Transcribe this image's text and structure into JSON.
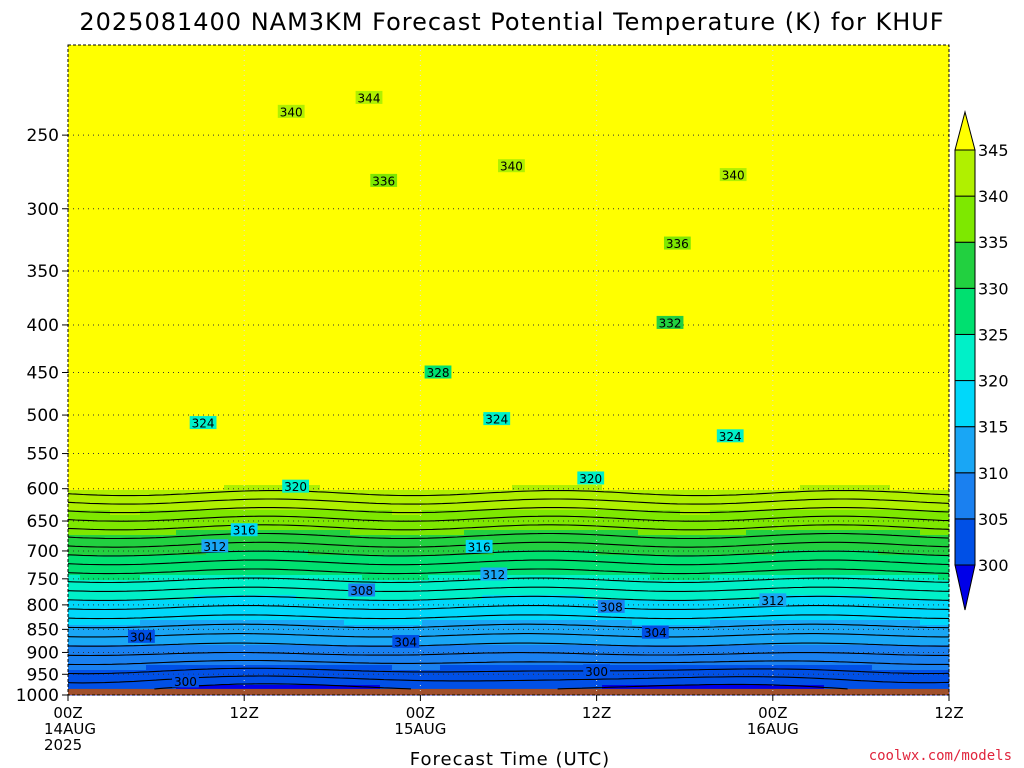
{
  "chart_data": {
    "type": "heatmap",
    "title": "2025081400 NAM3KM Forecast Potential Temperature (K) for KHUF",
    "xlabel": "Forecast Time (UTC)",
    "ylabel": "",
    "y_scale": "log",
    "y_inverted": true,
    "ylim": [
      1000,
      200
    ],
    "y_ticks": [
      250,
      300,
      350,
      400,
      450,
      500,
      550,
      600,
      650,
      700,
      750,
      800,
      850,
      900,
      950,
      1000
    ],
    "x_range_hours": [
      0,
      60
    ],
    "x_ticks": [
      {
        "hour": 0,
        "lines": [
          "00Z",
          "14AUG",
          "2025"
        ]
      },
      {
        "hour": 12,
        "lines": [
          "12Z"
        ]
      },
      {
        "hour": 24,
        "lines": [
          "00Z",
          "15AUG"
        ]
      },
      {
        "hour": 36,
        "lines": [
          "12Z"
        ]
      },
      {
        "hour": 48,
        "lines": [
          "00Z",
          "16AUG"
        ]
      },
      {
        "hour": 60,
        "lines": [
          "12Z"
        ]
      }
    ],
    "grid": true,
    "surface_pressure_hPa": 985,
    "surface_color": "#a0502c",
    "colorbar": {
      "levels": [
        300,
        305,
        310,
        315,
        320,
        325,
        330,
        335,
        340,
        345
      ],
      "labels": [
        "300",
        "305",
        "310",
        "315",
        "320",
        "325",
        "330",
        "335",
        "340",
        "345"
      ],
      "colors": [
        "#0000e8",
        "#0050e6",
        "#1a80f0",
        "#19a6f5",
        "#00d8fa",
        "#00f0c8",
        "#00e070",
        "#22d040",
        "#7ee800",
        "#b0f000",
        "#ffff00"
      ],
      "extend": "both",
      "placement": "right"
    },
    "contour_interval": 2,
    "contour_levels_shown": [
      300,
      302,
      304,
      306,
      308,
      310,
      312,
      314,
      316,
      318,
      320,
      322,
      324,
      326,
      328,
      330,
      332,
      334,
      336,
      338,
      340,
      342,
      344
    ],
    "contour_labels": [
      {
        "value": "344",
        "hour": 20.5,
        "pressure": 228
      },
      {
        "value": "340",
        "hour": 15.2,
        "pressure": 236
      },
      {
        "value": "340",
        "hour": 30.2,
        "pressure": 270
      },
      {
        "value": "340",
        "hour": 45.3,
        "pressure": 276
      },
      {
        "value": "336",
        "hour": 21.5,
        "pressure": 280
      },
      {
        "value": "336",
        "hour": 41.5,
        "pressure": 327
      },
      {
        "value": "332",
        "hour": 41.0,
        "pressure": 398
      },
      {
        "value": "328",
        "hour": 25.2,
        "pressure": 450
      },
      {
        "value": "324",
        "hour": 9.2,
        "pressure": 510
      },
      {
        "value": "324",
        "hour": 29.2,
        "pressure": 505
      },
      {
        "value": "324",
        "hour": 45.1,
        "pressure": 527
      },
      {
        "value": "320",
        "hour": 15.5,
        "pressure": 597
      },
      {
        "value": "320",
        "hour": 35.6,
        "pressure": 585
      },
      {
        "value": "316",
        "hour": 12.0,
        "pressure": 665
      },
      {
        "value": "316",
        "hour": 28.0,
        "pressure": 693
      },
      {
        "value": "312",
        "hour": 10.0,
        "pressure": 692
      },
      {
        "value": "312",
        "hour": 29.0,
        "pressure": 742
      },
      {
        "value": "312",
        "hour": 48.0,
        "pressure": 791
      },
      {
        "value": "308",
        "hour": 20.0,
        "pressure": 772
      },
      {
        "value": "308",
        "hour": 37.0,
        "pressure": 804
      },
      {
        "value": "304",
        "hour": 5.0,
        "pressure": 866
      },
      {
        "value": "304",
        "hour": 23.0,
        "pressure": 877
      },
      {
        "value": "304",
        "hour": 40.0,
        "pressure": 857
      },
      {
        "value": "300",
        "hour": 8.0,
        "pressure": 967
      },
      {
        "value": "300",
        "hour": 36.0,
        "pressure": 943
      }
    ]
  },
  "footer": {
    "credit": "coolwx.com/models"
  }
}
